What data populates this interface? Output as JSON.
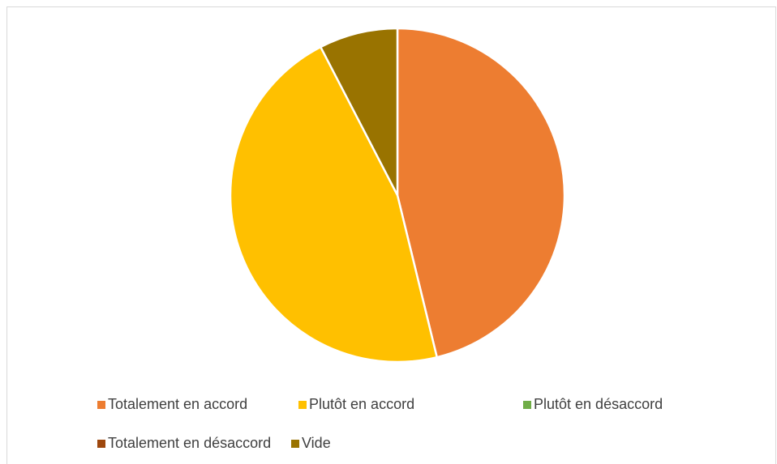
{
  "chart_data": {
    "type": "pie",
    "categories": [
      "Totalement en accord",
      "Plutôt en accord",
      "Plutôt en désaccord",
      "Totalement en désaccord",
      "Vide"
    ],
    "values": [
      46.2,
      46.2,
      0,
      0,
      7.6
    ],
    "colors": [
      "#ED7D31",
      "#FFC000",
      "#70AD47",
      "#9E480E",
      "#997300"
    ],
    "legend": "bottom"
  }
}
